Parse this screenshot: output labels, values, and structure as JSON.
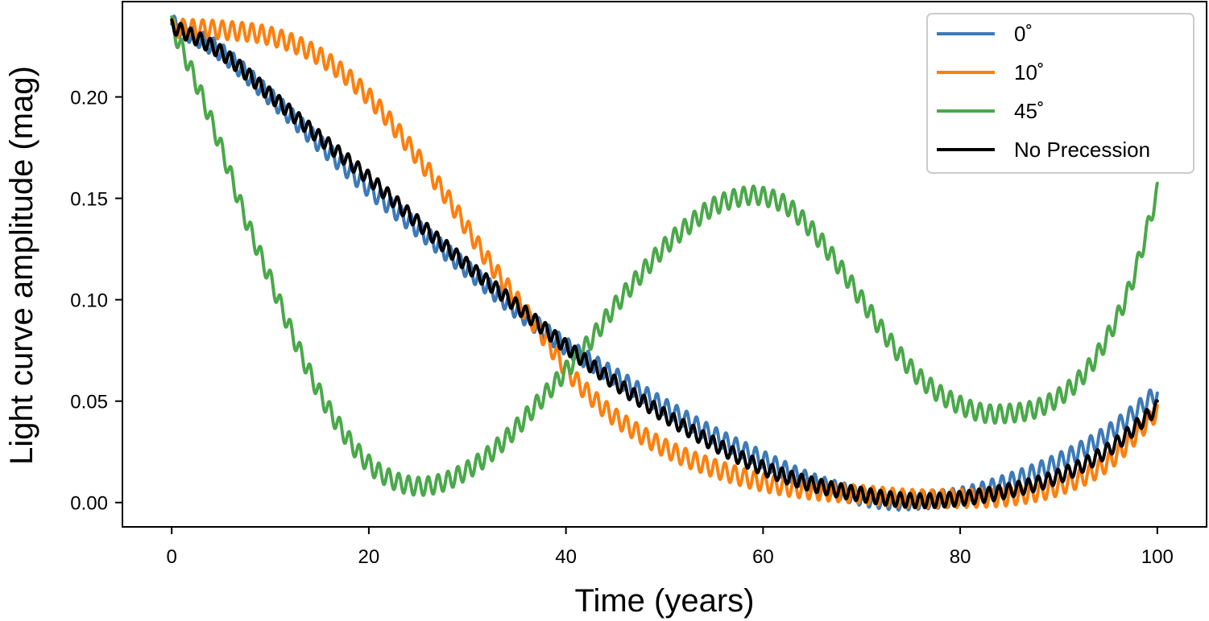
{
  "chart_data": {
    "type": "line",
    "title": "",
    "xlabel": "Time (years)",
    "ylabel": "Light curve amplitude (mag)",
    "xlim": [
      -5,
      105
    ],
    "ylim": [
      -0.012,
      0.247
    ],
    "xticks": [
      0,
      20,
      40,
      60,
      80,
      100
    ],
    "xtick_labels": [
      "0",
      "20",
      "40",
      "60",
      "80",
      "100"
    ],
    "yticks": [
      0.0,
      0.05,
      0.1,
      0.15,
      0.2
    ],
    "ytick_labels": [
      "0.00",
      "0.05",
      "0.10",
      "0.15",
      "0.20"
    ],
    "grid": false,
    "legend_position": "upper right",
    "wiggle": {
      "period_years": 1.0
    },
    "series": [
      {
        "name": "0$^\\circ$",
        "legend_label": "0˚",
        "color": "#3d7ab8",
        "wiggle_amplitude": 0.0045,
        "x": [
          0,
          5,
          10,
          15,
          20,
          25,
          30,
          35,
          40,
          45,
          50,
          55,
          60,
          65,
          70,
          73,
          75,
          80,
          85,
          90,
          95,
          100
        ],
        "y": [
          0.236,
          0.222,
          0.2,
          0.177,
          0.155,
          0.135,
          0.115,
          0.095,
          0.077,
          0.062,
          0.047,
          0.033,
          0.021,
          0.01,
          0.003,
          0.001,
          0.001,
          0.003,
          0.01,
          0.02,
          0.034,
          0.054
        ]
      },
      {
        "name": "10$^\\circ$",
        "legend_label": "10˚",
        "color": "#ff7f0e",
        "wiggle_amplitude": 0.0045,
        "x": [
          0,
          5,
          10,
          15,
          20,
          25,
          28,
          30,
          32,
          35,
          38,
          40,
          42,
          45,
          50,
          55,
          60,
          65,
          70,
          75,
          80,
          85,
          90,
          95,
          100
        ],
        "y": [
          0.234,
          0.233,
          0.23,
          0.22,
          0.2,
          0.17,
          0.15,
          0.135,
          0.12,
          0.1,
          0.08,
          0.066,
          0.055,
          0.042,
          0.027,
          0.017,
          0.01,
          0.006,
          0.004,
          0.002,
          0.002,
          0.003,
          0.008,
          0.02,
          0.045
        ]
      },
      {
        "name": "45$^\\circ$",
        "legend_label": "45˚",
        "color": "#4aa84a",
        "wiggle_amplitude": 0.0045,
        "x": [
          0,
          2.5,
          5,
          7.5,
          10,
          12.5,
          15,
          17.5,
          20,
          22.5,
          25,
          27.5,
          30,
          32.5,
          35,
          37.5,
          40,
          42.5,
          45,
          47.5,
          50,
          52.5,
          55,
          58,
          60,
          62.5,
          65,
          67.5,
          70,
          72.5,
          75,
          77.5,
          80,
          82.5,
          85,
          87.5,
          90,
          92.5,
          95,
          97.5,
          100
        ],
        "y": [
          0.235,
          0.207,
          0.175,
          0.14,
          0.11,
          0.08,
          0.054,
          0.034,
          0.019,
          0.011,
          0.008,
          0.01,
          0.016,
          0.025,
          0.037,
          0.051,
          0.065,
          0.08,
          0.097,
          0.112,
          0.126,
          0.137,
          0.146,
          0.151,
          0.151,
          0.146,
          0.134,
          0.118,
          0.1,
          0.082,
          0.066,
          0.055,
          0.048,
          0.044,
          0.044,
          0.046,
          0.052,
          0.063,
          0.082,
          0.11,
          0.153
        ]
      },
      {
        "name": "No Precession",
        "legend_label": "No Precession",
        "color": "#000000",
        "wiggle_amplitude": 0.0035,
        "x": [
          0,
          5,
          10,
          15,
          20,
          25,
          30,
          35,
          40,
          45,
          50,
          55,
          60,
          65,
          70,
          75,
          80,
          85,
          90,
          95,
          100
        ],
        "y": [
          0.235,
          0.222,
          0.201,
          0.18,
          0.16,
          0.138,
          0.117,
          0.097,
          0.077,
          0.059,
          0.043,
          0.029,
          0.017,
          0.009,
          0.004,
          0.001,
          0.002,
          0.006,
          0.013,
          0.026,
          0.047
        ]
      }
    ]
  }
}
